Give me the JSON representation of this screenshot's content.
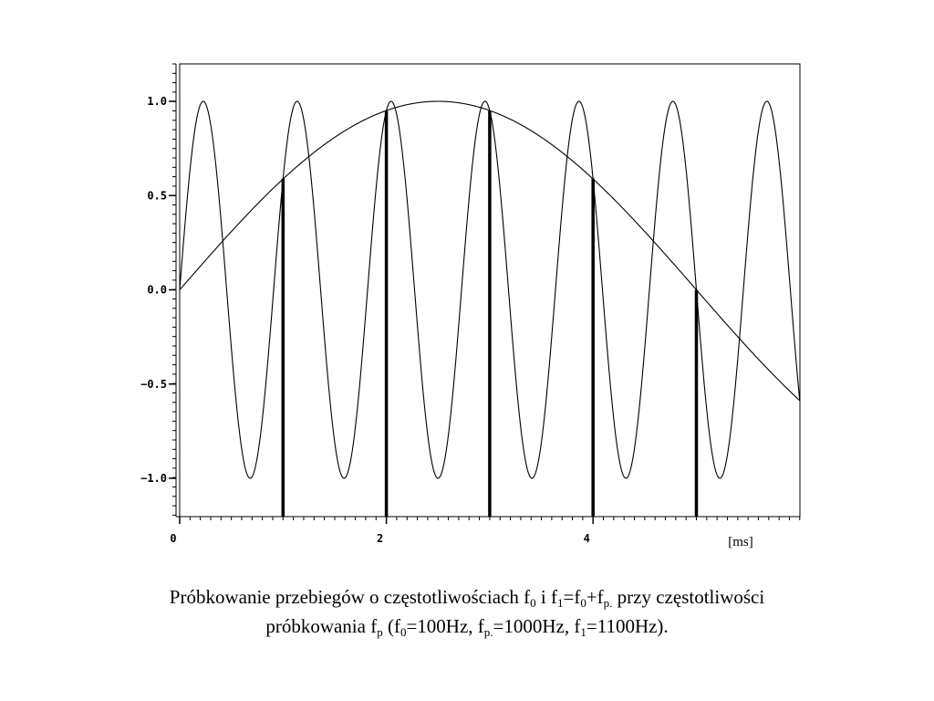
{
  "chart_data": {
    "type": "line",
    "x_unit_label": "[ms]",
    "x_range": [
      0,
      6.1
    ],
    "y_range": [
      -1.2,
      1.2
    ],
    "x_ticks": [
      0,
      2,
      4
    ],
    "x_tick_labels": [
      "0",
      "2",
      "4"
    ],
    "y_ticks": [
      1.0,
      0.5,
      0.0,
      -0.5,
      -1.0
    ],
    "y_tick_labels": [
      "1.0",
      "0.5",
      "0.0",
      "−0.5",
      "−1.0"
    ],
    "grid": false,
    "series": [
      {
        "frequency_hz": 100,
        "amplitude": 1.0,
        "function": "sin"
      },
      {
        "frequency_hz": 1100,
        "amplitude": 1.0,
        "function": "sin"
      }
    ],
    "samples": {
      "x": [
        1,
        2,
        3,
        4,
        5
      ],
      "y": [
        0.59,
        0.95,
        0.95,
        0.59,
        0.0
      ]
    }
  },
  "caption": {
    "line1": [
      {
        "t": "Próbkowanie przebiegów o częstotliwościach f"
      },
      {
        "sub": "0"
      },
      {
        "t": " i f"
      },
      {
        "sub": "1"
      },
      {
        "t": "=f"
      },
      {
        "sub": "0"
      },
      {
        "t": "+f"
      },
      {
        "sub": "p."
      },
      {
        "t": " przy częstotliwości"
      }
    ],
    "line2": [
      {
        "t": "próbkowania f"
      },
      {
        "sub": "p"
      },
      {
        "t": " (f"
      },
      {
        "sub": "0"
      },
      {
        "t": "=100Hz, f"
      },
      {
        "sub": "p."
      },
      {
        "t": "=1000Hz, f"
      },
      {
        "sub": "1"
      },
      {
        "t": "=1100Hz)."
      }
    ]
  }
}
